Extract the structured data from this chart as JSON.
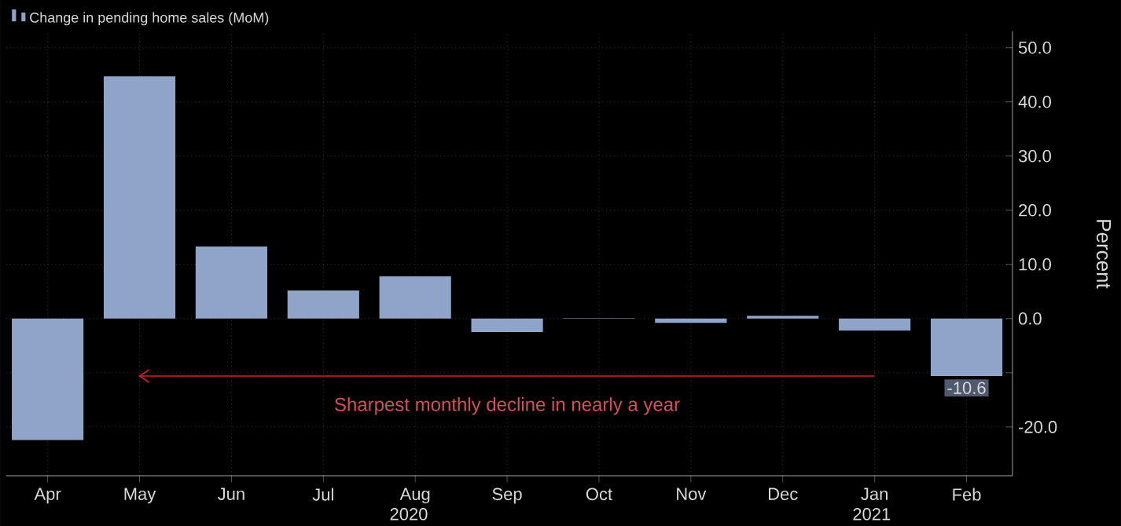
{
  "chart_data": {
    "type": "bar",
    "categories": [
      "Apr",
      "May",
      "Jun",
      "Jul",
      "Aug",
      "Sep",
      "Oct",
      "Nov",
      "Dec",
      "Jan",
      "Feb"
    ],
    "series": [
      {
        "name": "Change in pending home sales (MoM)",
        "color": "#8fa4c8",
        "values": [
          -22.4,
          44.7,
          13.3,
          5.2,
          7.8,
          -2.5,
          0.1,
          -0.8,
          0.5,
          -2.2,
          -10.6
        ],
        "value_labels": [
          null,
          null,
          null,
          null,
          null,
          null,
          null,
          null,
          null,
          null,
          "-10.6"
        ]
      }
    ],
    "ylabel": "Percent",
    "ylim": [
      -29,
      53
    ],
    "yticks": [
      {
        "value": -20,
        "label": "-20.0"
      },
      {
        "value": -10,
        "label": null
      },
      {
        "value": 0,
        "label": "0.0"
      },
      {
        "value": 10,
        "label": "10.0"
      },
      {
        "value": 20,
        "label": "20.0"
      },
      {
        "value": 30,
        "label": "30.0"
      },
      {
        "value": 40,
        "label": "40.0"
      },
      {
        "value": 50,
        "label": "50.0"
      }
    ],
    "ref_lines": [
      {
        "axis": "y",
        "value": -10.6,
        "label": "Sharpest monthly decline in nearly a year",
        "color": "#cc2233"
      }
    ],
    "annotations": [
      "2020",
      "2021"
    ],
    "grid": true,
    "legend": "top left"
  }
}
